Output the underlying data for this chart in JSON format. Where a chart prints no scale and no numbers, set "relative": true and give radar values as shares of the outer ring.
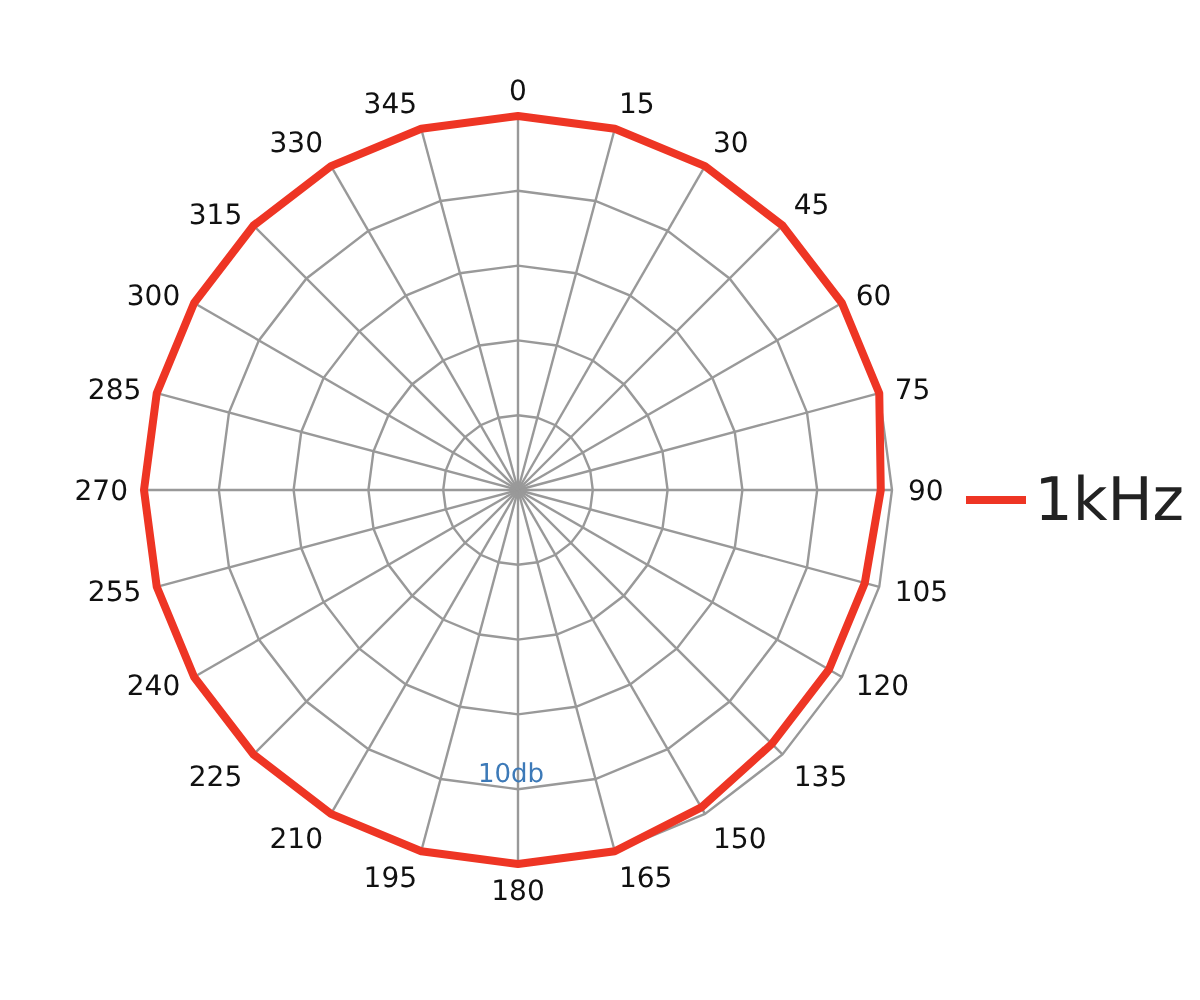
{
  "chart_data": {
    "type": "radar",
    "relative": true,
    "grid": true,
    "legend": "right",
    "marker": "none",
    "categories": [
      "0",
      "15",
      "30",
      "45",
      "60",
      "75",
      "90",
      "105",
      "120",
      "135",
      "150",
      "165",
      "180",
      "195",
      "210",
      "225",
      "240",
      "255",
      "270",
      "285",
      "300",
      "315",
      "330",
      "345"
    ],
    "series": [
      {
        "name": "1kHz",
        "color": "#ee3524",
        "values": [
          1,
          1,
          1,
          1,
          1,
          1,
          0.97,
          0.96,
          0.96,
          0.96,
          0.98,
          1,
          1,
          1,
          1,
          1,
          1,
          1,
          1,
          1,
          1,
          1,
          1,
          1
        ]
      }
    ],
    "annotations": [
      "10db"
    ]
  }
}
